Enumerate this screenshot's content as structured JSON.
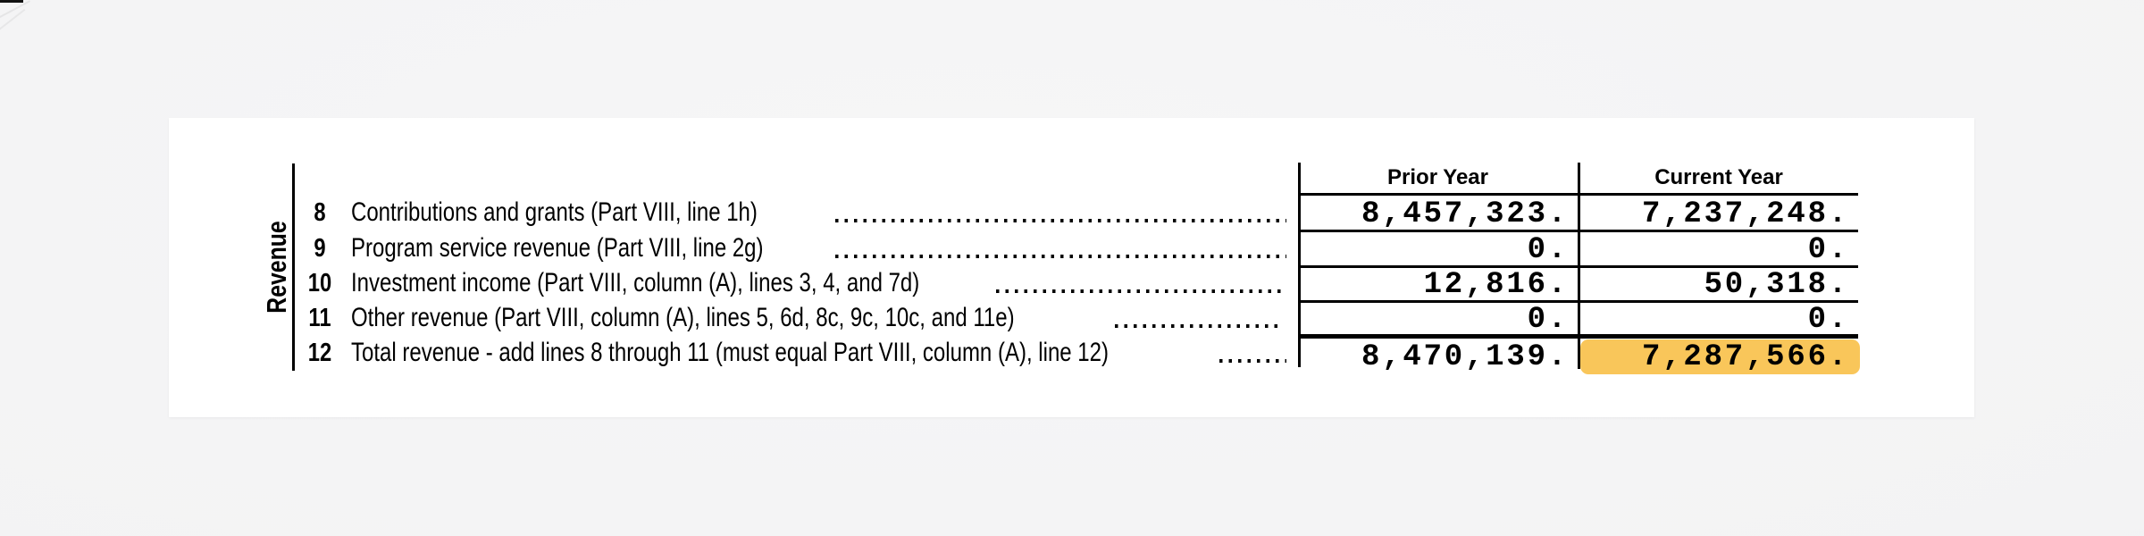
{
  "page": {
    "background_color": "#f3f3f4",
    "card_color": "#ffffff",
    "line_color": "#000000",
    "highlight_color": "#F9C65A"
  },
  "section_label": "Revenue",
  "table": {
    "columns": {
      "prior": "Prior Year",
      "current": "Current Year"
    },
    "rows": [
      {
        "num": "8",
        "label": "Contributions and grants (Part VIII, line 1h)",
        "prior": "8,457,323.",
        "current": "7,237,248.",
        "highlight_current": false
      },
      {
        "num": "9",
        "label": "Program service revenue (Part VIII, line 2g)",
        "prior": "0.",
        "current": "0.",
        "highlight_current": false
      },
      {
        "num": "10",
        "label": "Investment income (Part VIII, column (A), lines 3, 4, and 7d)",
        "prior": "12,816.",
        "current": "50,318.",
        "highlight_current": false
      },
      {
        "num": "11",
        "label": "Other revenue (Part VIII, column (A), lines 5, 6d, 8c, 9c, 10c, and 11e)",
        "prior": "0.",
        "current": "0.",
        "highlight_current": false
      },
      {
        "num": "12",
        "label": "Total revenue - add lines 8 through 11 (must equal Part VIII, column (A), line 12)",
        "prior": "8,470,139.",
        "current": "7,287,566.",
        "highlight_current": true
      }
    ]
  }
}
